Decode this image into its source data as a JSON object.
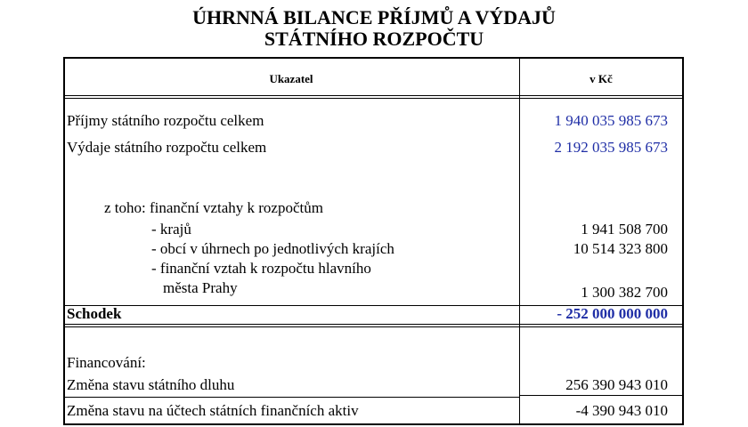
{
  "title": {
    "line1": "ÚHRNNÁ BILANCE PŘÍJMŮ A VÝDAJŮ",
    "line2": "STÁTNÍHO ROZPOČTU"
  },
  "table": {
    "header": {
      "indicator": "Ukazatel",
      "value": "v Kč"
    },
    "revenue": {
      "label": "Příjmy státního rozpočtu celkem",
      "value": "1 940 035 985 673"
    },
    "expenditure": {
      "label": "Výdaje státního rozpočtu celkem",
      "value": "2 192 035 985 673"
    },
    "of_which": {
      "label": "z toho: finanční vztahy k rozpočtům",
      "regions": {
        "label": "- krajů",
        "value": "1 941 508 700"
      },
      "municipalities": {
        "label": "- obcí v úhrnech po jednotlivých krajích",
        "value": "10 514 323 800"
      },
      "prague": {
        "label_line1": "- finanční vztah k rozpočtu hlavního",
        "label_line2": "města Prahy",
        "value": "1 300 382 700"
      }
    },
    "deficit": {
      "label": "Schodek",
      "value": "- 252 000 000 000"
    },
    "financing": {
      "label": "Financování:",
      "debt_change": {
        "label": "Změna stavu státního dluhu",
        "value": "256 390 943 010"
      },
      "assets_change": {
        "label": "Změna stavu na účtech státních finančních aktiv",
        "value": "-4 390 943 010"
      }
    }
  },
  "colors": {
    "value_highlight": "#1f2ea6",
    "text": "#000000"
  }
}
